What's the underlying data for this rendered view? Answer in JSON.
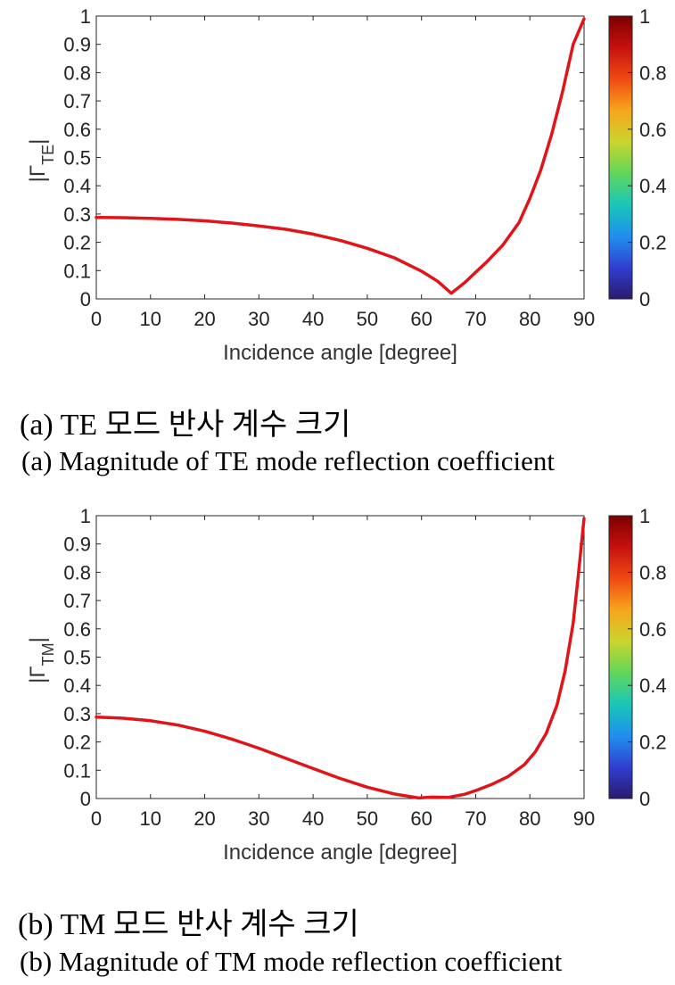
{
  "colorbar": {
    "colors": [
      "#2b1a6e",
      "#2f3fd0",
      "#1f90ee",
      "#19c6b8",
      "#62d65a",
      "#c9d52c",
      "#f7a51c",
      "#ef4a13",
      "#c81010",
      "#7a0000"
    ],
    "tick_labels": [
      "0",
      "0.2",
      "0.4",
      "0.6",
      "0.8",
      "1"
    ],
    "tick_values": [
      0,
      0.2,
      0.4,
      0.6,
      0.8,
      1
    ]
  },
  "chart_data": [
    {
      "type": "line",
      "xlabel": "Incidence angle [degree]",
      "ylabel": "|Γ",
      "ylabel_sub": "TE",
      "ylabel_close": "|",
      "xlim": [
        0,
        90
      ],
      "ylim": [
        0,
        1
      ],
      "x_ticks": [
        0,
        10,
        20,
        30,
        40,
        50,
        60,
        70,
        80,
        90
      ],
      "x_tick_labels": [
        "0",
        "10",
        "20",
        "30",
        "40",
        "50",
        "60",
        "70",
        "80",
        "90"
      ],
      "y_ticks": [
        0,
        0.1,
        0.2,
        0.3,
        0.4,
        0.5,
        0.6,
        0.7,
        0.8,
        0.9,
        1
      ],
      "y_tick_labels": [
        "0",
        "0.1",
        "0.2",
        "0.3",
        "0.4",
        "0.5",
        "0.6",
        "0.7",
        "0.8",
        "0.9",
        "1"
      ],
      "line_color": "#e0141b",
      "series": [
        {
          "name": "|Γ_TE|",
          "x": [
            0,
            5,
            10,
            15,
            20,
            25,
            30,
            35,
            40,
            45,
            50,
            55,
            60,
            63,
            65.5,
            68,
            70,
            72,
            75,
            78,
            80,
            82,
            84,
            86,
            88,
            90
          ],
          "y": [
            0.288,
            0.287,
            0.285,
            0.281,
            0.276,
            0.268,
            0.258,
            0.246,
            0.229,
            0.207,
            0.179,
            0.145,
            0.098,
            0.062,
            0.02,
            0.058,
            0.094,
            0.13,
            0.19,
            0.27,
            0.355,
            0.455,
            0.58,
            0.73,
            0.9,
            0.99
          ]
        }
      ],
      "caption_ko": "(a) TE 모드 반사 계수 크기",
      "caption_en": "(a) Magnitude of TE mode reflection coefficient"
    },
    {
      "type": "line",
      "xlabel": "Incidence angle [degree]",
      "ylabel": "|Γ",
      "ylabel_sub": "TM",
      "ylabel_close": "|",
      "xlim": [
        0,
        90
      ],
      "ylim": [
        0,
        1
      ],
      "x_ticks": [
        0,
        10,
        20,
        30,
        40,
        50,
        60,
        70,
        80,
        90
      ],
      "x_tick_labels": [
        "0",
        "10",
        "20",
        "30",
        "40",
        "50",
        "60",
        "70",
        "80",
        "90"
      ],
      "y_ticks": [
        0,
        0.1,
        0.2,
        0.3,
        0.4,
        0.5,
        0.6,
        0.7,
        0.8,
        0.9,
        1
      ],
      "y_tick_labels": [
        "0",
        "0.1",
        "0.2",
        "0.3",
        "0.4",
        "0.5",
        "0.6",
        "0.7",
        "0.8",
        "0.9",
        "1"
      ],
      "line_color": "#e0141b",
      "series": [
        {
          "name": "|Γ_TM|",
          "x": [
            0,
            5,
            10,
            15,
            20,
            25,
            30,
            35,
            40,
            45,
            50,
            55,
            59.5,
            62,
            65,
            68,
            70,
            73,
            76,
            79,
            81,
            83,
            85,
            86.5,
            88,
            89,
            90
          ],
          "y": [
            0.288,
            0.284,
            0.275,
            0.26,
            0.238,
            0.21,
            0.178,
            0.142,
            0.106,
            0.071,
            0.04,
            0.016,
            0.002,
            0.005,
            0.004,
            0.015,
            0.028,
            0.05,
            0.078,
            0.12,
            0.165,
            0.23,
            0.33,
            0.45,
            0.62,
            0.8,
            0.99
          ]
        }
      ],
      "caption_ko": "(b) TM 모드 반사 계수 크기",
      "caption_en": "(b) Magnitude of TM mode reflection coefficient"
    }
  ]
}
